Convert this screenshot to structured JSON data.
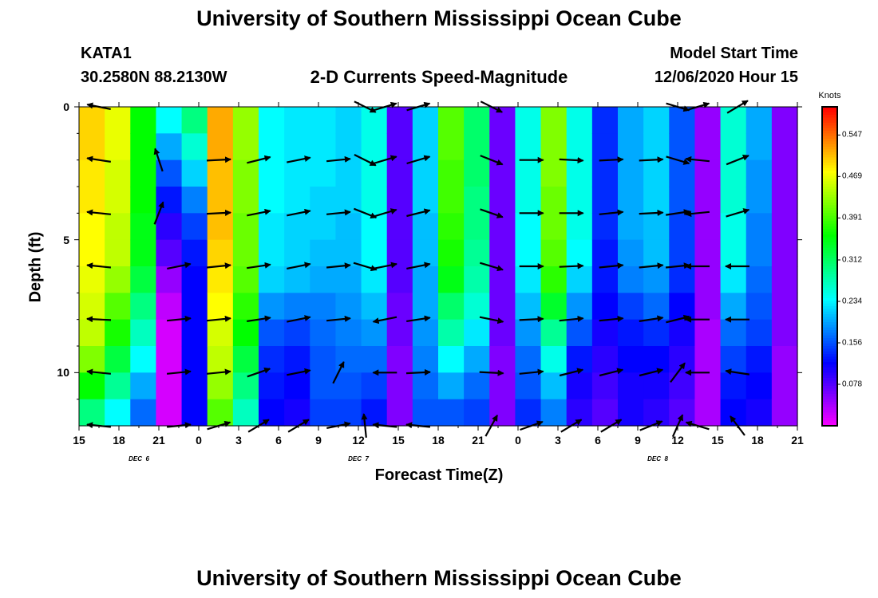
{
  "header": {
    "title_top": "University of Southern Mississippi Ocean Cube",
    "title_bottom": "University of Southern Mississippi Ocean Cube",
    "station": "KATA1",
    "location": "30.2580N 88.2130W",
    "subtitle": "2-D Currents Speed-Magnitude",
    "model_start_label": "Model Start Time",
    "model_start_value": "12/06/2020 Hour 15"
  },
  "chart_data": {
    "type": "heatmap",
    "title": "2-D Currents Speed-Magnitude",
    "xlabel": "Forecast Time(Z)",
    "ylabel": "Depth (ft)",
    "x_ticks": [
      "15",
      "18",
      "21",
      "0",
      "3",
      "6",
      "9",
      "12",
      "15",
      "18",
      "21",
      "0",
      "3",
      "6",
      "9",
      "12",
      "15",
      "18",
      "21"
    ],
    "x_range_hours": [
      0,
      54
    ],
    "date_labels": [
      {
        "text": "DEC  6",
        "hour": 4.5
      },
      {
        "text": "DEC  7",
        "hour": 21
      },
      {
        "text": "DEC  8",
        "hour": 43.5
      }
    ],
    "y_ticks": [
      {
        "label": "0",
        "value": 0
      },
      {
        "label": "5",
        "value": 5
      },
      {
        "label": "10",
        "value": 10
      }
    ],
    "y_range_ft": [
      0,
      12
    ],
    "colorbar": {
      "label": "Knots",
      "ticks": [
        "0.547",
        "0.469",
        "0.391",
        "0.312",
        "0.234",
        "0.156",
        "0.078"
      ],
      "tick_values": [
        0.547,
        0.469,
        0.391,
        0.312,
        0.234,
        0.156,
        0.078
      ],
      "range": [
        0,
        0.6
      ]
    },
    "speed_columns_knots": [
      [
        0.5,
        0.5,
        0.49,
        0.49,
        0.48,
        0.48,
        0.47,
        0.46,
        0.45,
        0.42,
        0.36,
        0.3
      ],
      [
        0.47,
        0.47,
        0.46,
        0.46,
        0.45,
        0.45,
        0.43,
        0.4,
        0.37,
        0.33,
        0.29,
        0.24
      ],
      [
        0.36,
        0.36,
        0.36,
        0.36,
        0.35,
        0.35,
        0.33,
        0.3,
        0.27,
        0.24,
        0.2,
        0.17
      ],
      [
        0.24,
        0.2,
        0.16,
        0.13,
        0.1,
        0.08,
        0.05,
        0.03,
        0.02,
        0.02,
        0.02,
        0.02
      ],
      [
        0.3,
        0.26,
        0.22,
        0.18,
        0.15,
        0.13,
        0.12,
        0.12,
        0.12,
        0.12,
        0.12,
        0.12
      ],
      [
        0.52,
        0.52,
        0.51,
        0.51,
        0.51,
        0.5,
        0.49,
        0.48,
        0.46,
        0.45,
        0.43,
        0.4
      ],
      [
        0.43,
        0.43,
        0.42,
        0.42,
        0.41,
        0.41,
        0.4,
        0.38,
        0.36,
        0.33,
        0.3,
        0.27
      ],
      [
        0.24,
        0.24,
        0.24,
        0.24,
        0.23,
        0.23,
        0.22,
        0.19,
        0.16,
        0.14,
        0.13,
        0.12
      ],
      [
        0.23,
        0.23,
        0.23,
        0.23,
        0.22,
        0.22,
        0.21,
        0.18,
        0.15,
        0.13,
        0.12,
        0.11
      ],
      [
        0.23,
        0.23,
        0.23,
        0.22,
        0.22,
        0.21,
        0.2,
        0.18,
        0.17,
        0.16,
        0.16,
        0.15
      ],
      [
        0.22,
        0.22,
        0.22,
        0.22,
        0.21,
        0.21,
        0.2,
        0.19,
        0.18,
        0.17,
        0.16,
        0.15
      ],
      [
        0.25,
        0.25,
        0.25,
        0.25,
        0.24,
        0.24,
        0.23,
        0.21,
        0.19,
        0.17,
        0.15,
        0.13
      ],
      [
        0.08,
        0.08,
        0.08,
        0.08,
        0.08,
        0.08,
        0.08,
        0.07,
        0.07,
        0.06,
        0.06,
        0.06
      ],
      [
        0.22,
        0.22,
        0.22,
        0.22,
        0.21,
        0.21,
        0.2,
        0.2,
        0.19,
        0.18,
        0.17,
        0.16
      ],
      [
        0.4,
        0.4,
        0.39,
        0.39,
        0.38,
        0.37,
        0.35,
        0.31,
        0.28,
        0.24,
        0.2,
        0.16
      ],
      [
        0.31,
        0.31,
        0.31,
        0.3,
        0.3,
        0.29,
        0.28,
        0.26,
        0.23,
        0.2,
        0.17,
        0.15
      ],
      [
        0.07,
        0.07,
        0.07,
        0.07,
        0.07,
        0.07,
        0.07,
        0.07,
        0.07,
        0.06,
        0.06,
        0.06
      ],
      [
        0.25,
        0.25,
        0.25,
        0.25,
        0.24,
        0.24,
        0.23,
        0.21,
        0.19,
        0.17,
        0.16,
        0.14
      ],
      [
        0.42,
        0.42,
        0.42,
        0.41,
        0.41,
        0.4,
        0.38,
        0.34,
        0.29,
        0.25,
        0.21,
        0.18
      ],
      [
        0.25,
        0.25,
        0.25,
        0.25,
        0.25,
        0.24,
        0.22,
        0.19,
        0.16,
        0.13,
        0.11,
        0.1
      ],
      [
        0.14,
        0.14,
        0.14,
        0.14,
        0.14,
        0.13,
        0.13,
        0.12,
        0.11,
        0.1,
        0.09,
        0.08
      ],
      [
        0.2,
        0.2,
        0.2,
        0.2,
        0.2,
        0.19,
        0.18,
        0.15,
        0.13,
        0.12,
        0.11,
        0.11
      ],
      [
        0.22,
        0.22,
        0.22,
        0.22,
        0.21,
        0.21,
        0.19,
        0.17,
        0.14,
        0.12,
        0.11,
        0.1
      ],
      [
        0.16,
        0.16,
        0.16,
        0.16,
        0.15,
        0.15,
        0.14,
        0.12,
        0.11,
        0.1,
        0.09,
        0.08
      ],
      [
        0.05,
        0.05,
        0.05,
        0.05,
        0.05,
        0.05,
        0.05,
        0.05,
        0.04,
        0.04,
        0.04,
        0.04
      ],
      [
        0.26,
        0.26,
        0.26,
        0.26,
        0.25,
        0.25,
        0.23,
        0.2,
        0.17,
        0.15,
        0.13,
        0.12
      ],
      [
        0.2,
        0.2,
        0.19,
        0.19,
        0.18,
        0.18,
        0.17,
        0.16,
        0.15,
        0.13,
        0.12,
        0.11
      ],
      [
        0.06,
        0.06,
        0.06,
        0.06,
        0.06,
        0.06,
        0.06,
        0.06,
        0.06,
        0.05,
        0.05,
        0.05
      ]
    ],
    "vectors": [
      {
        "t": 1.5,
        "d": 0,
        "u": -1.0,
        "v": 0.2
      },
      {
        "t": 1.5,
        "d": 2,
        "u": -1.0,
        "v": 0.15
      },
      {
        "t": 1.5,
        "d": 4,
        "u": -1.0,
        "v": 0.1
      },
      {
        "t": 1.5,
        "d": 6,
        "u": -1.0,
        "v": 0.1
      },
      {
        "t": 1.5,
        "d": 8,
        "u": -1.0,
        "v": 0.05
      },
      {
        "t": 1.5,
        "d": 10,
        "u": -1.0,
        "v": 0.1
      },
      {
        "t": 1.5,
        "d": 12,
        "u": -1.0,
        "v": 0.1
      },
      {
        "t": 6,
        "d": 2,
        "u": -0.3,
        "v": 0.9
      },
      {
        "t": 6,
        "d": 4,
        "u": 0.35,
        "v": 0.9
      },
      {
        "t": 7.5,
        "d": 6,
        "u": 1.0,
        "v": 0.2
      },
      {
        "t": 7.5,
        "d": 8,
        "u": 1.0,
        "v": 0.1
      },
      {
        "t": 7.5,
        "d": 10,
        "u": 1.0,
        "v": 0.1
      },
      {
        "t": 7.5,
        "d": 12,
        "u": 1.0,
        "v": 0.1
      },
      {
        "t": 10.5,
        "d": 2,
        "u": 1.0,
        "v": 0.05
      },
      {
        "t": 10.5,
        "d": 4,
        "u": 1.0,
        "v": 0.05
      },
      {
        "t": 10.5,
        "d": 6,
        "u": 1.0,
        "v": 0.1
      },
      {
        "t": 10.5,
        "d": 8,
        "u": 1.0,
        "v": 0.1
      },
      {
        "t": 10.5,
        "d": 10,
        "u": 1.0,
        "v": 0.1
      },
      {
        "t": 10.5,
        "d": 12,
        "u": 1.0,
        "v": 0.3
      },
      {
        "t": 13.5,
        "d": 2,
        "u": 1.0,
        "v": 0.25
      },
      {
        "t": 13.5,
        "d": 4,
        "u": 1.0,
        "v": 0.2
      },
      {
        "t": 13.5,
        "d": 6,
        "u": 1.0,
        "v": 0.15
      },
      {
        "t": 13.5,
        "d": 8,
        "u": 1.0,
        "v": 0.15
      },
      {
        "t": 13.5,
        "d": 10,
        "u": 1.0,
        "v": 0.35
      },
      {
        "t": 13.5,
        "d": 12,
        "u": 1.0,
        "v": 0.6
      },
      {
        "t": 16.5,
        "d": 2,
        "u": 1.0,
        "v": 0.2
      },
      {
        "t": 16.5,
        "d": 4,
        "u": 1.0,
        "v": 0.2
      },
      {
        "t": 16.5,
        "d": 6,
        "u": 1.0,
        "v": 0.2
      },
      {
        "t": 16.5,
        "d": 8,
        "u": 1.0,
        "v": 0.2
      },
      {
        "t": 16.5,
        "d": 10,
        "u": 1.0,
        "v": 0.2
      },
      {
        "t": 16.5,
        "d": 12,
        "u": 1.0,
        "v": 0.6
      },
      {
        "t": 19.5,
        "d": 2,
        "u": 1.0,
        "v": 0.1
      },
      {
        "t": 19.5,
        "d": 4,
        "u": 1.0,
        "v": 0.1
      },
      {
        "t": 19.5,
        "d": 6,
        "u": 1.0,
        "v": 0.1
      },
      {
        "t": 19.5,
        "d": 8,
        "u": 1.0,
        "v": 0.1
      },
      {
        "t": 19.5,
        "d": 10,
        "u": 0.45,
        "v": 0.9
      },
      {
        "t": 19.5,
        "d": 12,
        "u": 1.0,
        "v": 0.2
      },
      {
        "t": 21.5,
        "d": 0,
        "u": 1.0,
        "v": -0.5
      },
      {
        "t": 21.5,
        "d": 2,
        "u": 1.0,
        "v": -0.5
      },
      {
        "t": 21.5,
        "d": 4,
        "u": 1.0,
        "v": -0.4
      },
      {
        "t": 21.5,
        "d": 6,
        "u": 1.0,
        "v": -0.3
      },
      {
        "t": 21.5,
        "d": 12,
        "u": -0.1,
        "v": 1.0
      },
      {
        "t": 23,
        "d": 0,
        "u": 1.0,
        "v": 0.3
      },
      {
        "t": 23,
        "d": 2,
        "u": 1.0,
        "v": 0.3
      },
      {
        "t": 23,
        "d": 4,
        "u": 1.0,
        "v": 0.3
      },
      {
        "t": 23,
        "d": 6,
        "u": 1.0,
        "v": 0.2
      },
      {
        "t": 23,
        "d": 8,
        "u": -1.0,
        "v": -0.2
      },
      {
        "t": 23,
        "d": 10,
        "u": -1.0,
        "v": 0.0
      },
      {
        "t": 23,
        "d": 12,
        "u": -1.0,
        "v": 0.1
      },
      {
        "t": 25.5,
        "d": 0,
        "u": 1.0,
        "v": 0.3
      },
      {
        "t": 25.5,
        "d": 2,
        "u": 1.0,
        "v": 0.3
      },
      {
        "t": 25.5,
        "d": 4,
        "u": 1.0,
        "v": 0.25
      },
      {
        "t": 25.5,
        "d": 6,
        "u": 1.0,
        "v": 0.2
      },
      {
        "t": 25.5,
        "d": 8,
        "u": 1.0,
        "v": 0.15
      },
      {
        "t": 25.5,
        "d": 10,
        "u": 1.0,
        "v": 0.05
      },
      {
        "t": 25.5,
        "d": 12,
        "u": -1.0,
        "v": 0.1
      },
      {
        "t": 31,
        "d": 0,
        "u": 1.0,
        "v": -0.5
      },
      {
        "t": 31,
        "d": 2,
        "u": 1.0,
        "v": -0.4
      },
      {
        "t": 31,
        "d": 4,
        "u": 1.0,
        "v": -0.35
      },
      {
        "t": 31,
        "d": 6,
        "u": 1.0,
        "v": -0.3
      },
      {
        "t": 31,
        "d": 8,
        "u": 1.0,
        "v": -0.2
      },
      {
        "t": 31,
        "d": 10,
        "u": 1.0,
        "v": -0.05
      },
      {
        "t": 31,
        "d": 12,
        "u": 0.5,
        "v": 0.9
      },
      {
        "t": 34,
        "d": 2,
        "u": 1.0,
        "v": 0.0
      },
      {
        "t": 34,
        "d": 4,
        "u": 1.0,
        "v": 0.0
      },
      {
        "t": 34,
        "d": 6,
        "u": 1.0,
        "v": 0.0
      },
      {
        "t": 34,
        "d": 8,
        "u": 1.0,
        "v": 0.05
      },
      {
        "t": 34,
        "d": 10,
        "u": 1.0,
        "v": 0.1
      },
      {
        "t": 34,
        "d": 12,
        "u": 1.0,
        "v": 0.35
      },
      {
        "t": 37,
        "d": 2,
        "u": 1.0,
        "v": -0.05
      },
      {
        "t": 37,
        "d": 4,
        "u": 1.0,
        "v": 0.0
      },
      {
        "t": 37,
        "d": 6,
        "u": 1.0,
        "v": 0.05
      },
      {
        "t": 37,
        "d": 8,
        "u": 1.0,
        "v": 0.1
      },
      {
        "t": 37,
        "d": 10,
        "u": 1.0,
        "v": 0.25
      },
      {
        "t": 37,
        "d": 12,
        "u": 1.0,
        "v": 0.6
      },
      {
        "t": 40,
        "d": 2,
        "u": 1.0,
        "v": 0.05
      },
      {
        "t": 40,
        "d": 4,
        "u": 1.0,
        "v": 0.1
      },
      {
        "t": 40,
        "d": 6,
        "u": 1.0,
        "v": 0.1
      },
      {
        "t": 40,
        "d": 8,
        "u": 1.0,
        "v": 0.1
      },
      {
        "t": 40,
        "d": 10,
        "u": 1.0,
        "v": 0.25
      },
      {
        "t": 40,
        "d": 12,
        "u": 1.0,
        "v": 0.6
      },
      {
        "t": 43,
        "d": 2,
        "u": 1.0,
        "v": 0.05
      },
      {
        "t": 43,
        "d": 4,
        "u": 1.0,
        "v": 0.05
      },
      {
        "t": 43,
        "d": 6,
        "u": 1.0,
        "v": 0.1
      },
      {
        "t": 43,
        "d": 8,
        "u": 1.0,
        "v": 0.15
      },
      {
        "t": 43,
        "d": 10,
        "u": 1.0,
        "v": 0.25
      },
      {
        "t": 43,
        "d": 12,
        "u": 1.0,
        "v": 0.4
      },
      {
        "t": 45,
        "d": 0,
        "u": 1.0,
        "v": -0.3
      },
      {
        "t": 45,
        "d": 2,
        "u": 1.0,
        "v": -0.3
      },
      {
        "t": 45,
        "d": 4,
        "u": 1.0,
        "v": 0.15
      },
      {
        "t": 45,
        "d": 6,
        "u": 1.0,
        "v": 0.1
      },
      {
        "t": 45,
        "d": 8,
        "u": 1.0,
        "v": 0.25
      },
      {
        "t": 45,
        "d": 10,
        "u": 0.6,
        "v": 0.8
      },
      {
        "t": 45,
        "d": 12,
        "u": 0.4,
        "v": 0.9
      },
      {
        "t": 46.5,
        "d": 0,
        "u": 1.0,
        "v": 0.3
      },
      {
        "t": 46.5,
        "d": 2,
        "u": -1.0,
        "v": 0.1
      },
      {
        "t": 46.5,
        "d": 4,
        "u": -1.0,
        "v": -0.1
      },
      {
        "t": 46.5,
        "d": 6,
        "u": -1.0,
        "v": 0.0
      },
      {
        "t": 46.5,
        "d": 8,
        "u": -1.0,
        "v": 0.0
      },
      {
        "t": 46.5,
        "d": 10,
        "u": -1.0,
        "v": 0.0
      },
      {
        "t": 46.5,
        "d": 12,
        "u": -1.0,
        "v": 0.3
      },
      {
        "t": 49.5,
        "d": 0,
        "u": 1.0,
        "v": 0.6
      },
      {
        "t": 49.5,
        "d": 2,
        "u": 1.0,
        "v": 0.4
      },
      {
        "t": 49.5,
        "d": 4,
        "u": 1.0,
        "v": 0.3
      },
      {
        "t": 49.5,
        "d": 6,
        "u": -1.0,
        "v": 0.0
      },
      {
        "t": 49.5,
        "d": 8,
        "u": -1.0,
        "v": 0.0
      },
      {
        "t": 49.5,
        "d": 10,
        "u": -1.0,
        "v": 0.15
      },
      {
        "t": 49.5,
        "d": 12,
        "u": -0.6,
        "v": 0.8
      }
    ]
  }
}
